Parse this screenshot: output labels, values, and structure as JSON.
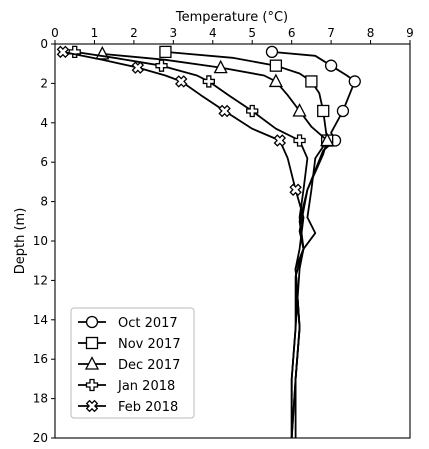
{
  "chart_data": {
    "type": "line",
    "title": "",
    "xlabel": "Temperature (°C)",
    "ylabel": "Depth (m)",
    "x_axis_position": "top",
    "y_axis_inverted": true,
    "xlim": [
      0,
      9
    ],
    "ylim": [
      0,
      20
    ],
    "x_ticks": [
      "0",
      "1",
      "2",
      "3",
      "4",
      "5",
      "6",
      "7",
      "8",
      "9"
    ],
    "y_ticks": [
      "0",
      "2",
      "4",
      "6",
      "8",
      "10",
      "12",
      "14",
      "16",
      "18",
      "20"
    ],
    "grid": false,
    "legend_position": "bottom-left",
    "series_color": "#000000",
    "series": [
      {
        "name": "Oct 2017",
        "marker": "circle",
        "points": [
          [
            5.5,
            0.4
          ],
          [
            6.6,
            0.6
          ],
          [
            7.0,
            1.1
          ],
          [
            7.4,
            1.6
          ],
          [
            7.6,
            1.9
          ],
          [
            7.5,
            2.4
          ],
          [
            7.3,
            3.4
          ],
          [
            7.0,
            4.5
          ],
          [
            7.1,
            4.9
          ],
          [
            6.8,
            5.4
          ],
          [
            6.4,
            7.4
          ],
          [
            6.2,
            9.5
          ],
          [
            6.3,
            10.4
          ],
          [
            6.1,
            11.4
          ],
          [
            6.2,
            14.4
          ],
          [
            6.1,
            17.0
          ],
          [
            6.0,
            20.0
          ]
        ],
        "markers": [
          [
            5.5,
            0.4
          ],
          [
            7.0,
            1.1
          ],
          [
            7.6,
            1.9
          ],
          [
            7.3,
            3.4
          ],
          [
            7.1,
            4.9
          ]
        ]
      },
      {
        "name": "Nov 2017",
        "marker": "square",
        "points": [
          [
            2.8,
            0.4
          ],
          [
            4.5,
            0.7
          ],
          [
            5.6,
            1.1
          ],
          [
            6.2,
            1.5
          ],
          [
            6.5,
            1.9
          ],
          [
            6.7,
            2.5
          ],
          [
            6.8,
            3.4
          ],
          [
            6.9,
            4.9
          ],
          [
            6.8,
            5.6
          ],
          [
            6.4,
            7.4
          ],
          [
            6.2,
            9.0
          ],
          [
            6.3,
            10.4
          ],
          [
            6.1,
            11.8
          ],
          [
            6.1,
            14.4
          ],
          [
            6.0,
            17.0
          ],
          [
            6.0,
            20.0
          ]
        ],
        "markers": [
          [
            2.8,
            0.4
          ],
          [
            5.6,
            1.1
          ],
          [
            6.5,
            1.9
          ],
          [
            6.8,
            3.4
          ],
          [
            6.9,
            4.9
          ]
        ]
      },
      {
        "name": "Dec 2017",
        "marker": "triangle",
        "points": [
          [
            1.2,
            0.5
          ],
          [
            2.8,
            0.8
          ],
          [
            4.2,
            1.2
          ],
          [
            5.3,
            1.6
          ],
          [
            5.6,
            1.9
          ],
          [
            5.9,
            2.6
          ],
          [
            6.2,
            3.4
          ],
          [
            6.5,
            4.2
          ],
          [
            6.9,
            4.9
          ],
          [
            6.6,
            5.8
          ],
          [
            6.5,
            7.4
          ],
          [
            6.4,
            8.8
          ],
          [
            6.6,
            9.6
          ],
          [
            6.3,
            10.4
          ],
          [
            6.1,
            11.4
          ],
          [
            6.2,
            14.4
          ],
          [
            6.1,
            17.0
          ],
          [
            6.0,
            20.0
          ]
        ],
        "markers": [
          [
            1.2,
            0.5
          ],
          [
            4.2,
            1.2
          ],
          [
            5.6,
            1.9
          ],
          [
            6.2,
            3.4
          ],
          [
            6.9,
            4.9
          ]
        ]
      },
      {
        "name": "Jan 2018",
        "marker": "plus",
        "points": [
          [
            0.5,
            0.4
          ],
          [
            1.5,
            0.7
          ],
          [
            2.7,
            1.1
          ],
          [
            3.6,
            1.6
          ],
          [
            3.9,
            1.9
          ],
          [
            4.4,
            2.6
          ],
          [
            5.0,
            3.4
          ],
          [
            5.6,
            4.3
          ],
          [
            6.2,
            4.9
          ],
          [
            6.4,
            5.8
          ],
          [
            6.3,
            7.4
          ],
          [
            6.2,
            8.8
          ],
          [
            6.3,
            10.4
          ],
          [
            6.2,
            11.4
          ],
          [
            6.1,
            14.4
          ],
          [
            6.0,
            17.0
          ],
          [
            6.0,
            20.0
          ]
        ],
        "markers": [
          [
            0.5,
            0.4
          ],
          [
            2.7,
            1.1
          ],
          [
            3.9,
            1.9
          ],
          [
            5.0,
            3.4
          ],
          [
            6.2,
            4.9
          ]
        ]
      },
      {
        "name": "Feb 2018",
        "marker": "cross",
        "points": [
          [
            0.2,
            0.4
          ],
          [
            1.2,
            0.8
          ],
          [
            2.1,
            1.2
          ],
          [
            2.8,
            1.6
          ],
          [
            3.2,
            1.9
          ],
          [
            3.7,
            2.6
          ],
          [
            4.3,
            3.4
          ],
          [
            5.0,
            4.3
          ],
          [
            5.7,
            4.9
          ],
          [
            5.9,
            5.8
          ],
          [
            6.1,
            7.4
          ],
          [
            6.3,
            8.8
          ],
          [
            6.2,
            10.4
          ],
          [
            6.1,
            11.4
          ],
          [
            6.2,
            14.4
          ],
          [
            6.1,
            17.0
          ],
          [
            6.1,
            20.0
          ]
        ],
        "markers": [
          [
            0.2,
            0.4
          ],
          [
            2.1,
            1.2
          ],
          [
            3.2,
            1.9
          ],
          [
            4.3,
            3.4
          ],
          [
            5.7,
            4.9
          ],
          [
            6.1,
            7.4
          ]
        ]
      }
    ]
  }
}
